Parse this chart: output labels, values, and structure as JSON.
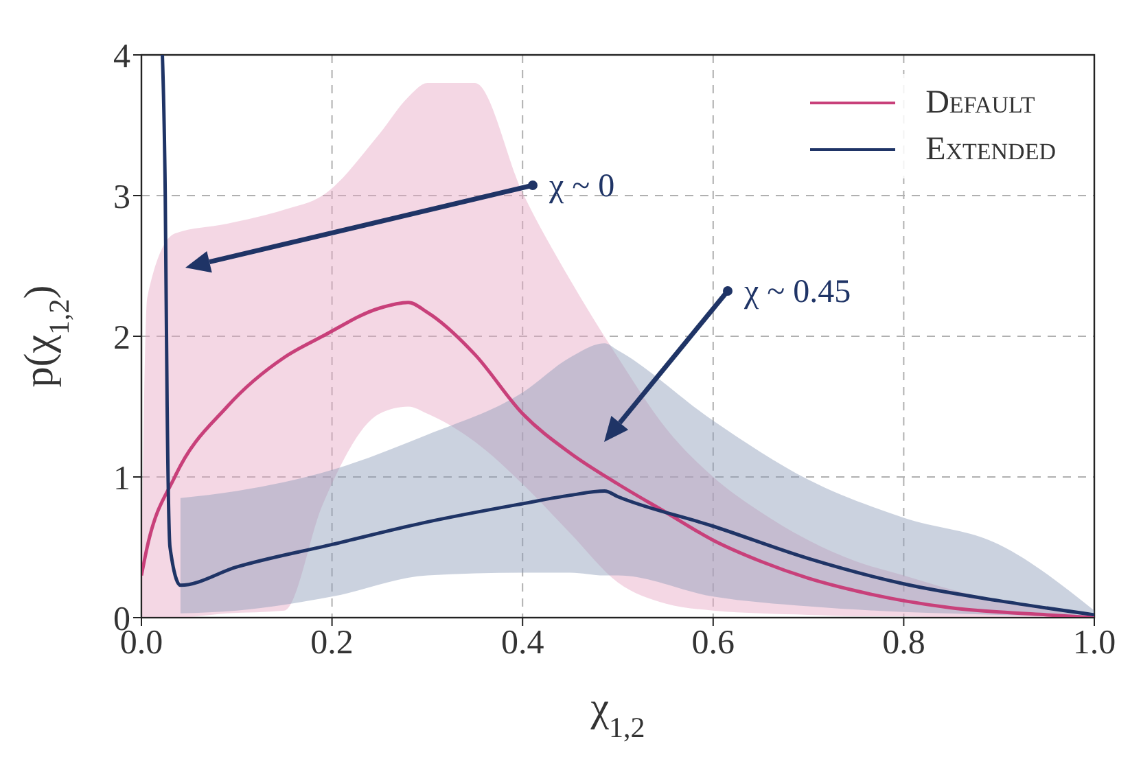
{
  "chart_data": {
    "type": "line",
    "xlabel": "χ$_{1,2}$",
    "ylabel": "p(χ$_{1,2}$)",
    "xlim": [
      0,
      1
    ],
    "ylim": [
      0,
      4
    ],
    "xticks": [
      {
        "value": 0,
        "label": "0.0"
      },
      {
        "value": 0.2,
        "label": "0.2"
      },
      {
        "value": 0.4,
        "label": "0.4"
      },
      {
        "value": 0.6,
        "label": "0.6"
      },
      {
        "value": 0.8,
        "label": "0.8"
      },
      {
        "value": 1,
        "label": "1.0"
      }
    ],
    "yticks": [
      0,
      1,
      2,
      3,
      4
    ],
    "grid": true,
    "legend": "top right",
    "marker": "none",
    "line_style": "solid",
    "series": [
      {
        "name": "Default",
        "color": "#c8407a",
        "x": [
          0,
          0.006,
          0.035,
          0.09,
          0.15,
          0.19,
          0.25,
          0.28,
          0.3,
          0.35,
          0.4,
          0.45,
          0.5,
          0.55,
          0.6,
          0.65,
          0.7,
          0.75,
          0.8,
          0.85,
          0.9,
          0.95,
          1.0
        ],
        "values": [
          0.3,
          0.5,
          1.0,
          1.5,
          1.85,
          2.0,
          2.2,
          2.24,
          2.17,
          1.87,
          1.45,
          1.17,
          0.95,
          0.75,
          0.55,
          0.4,
          0.28,
          0.19,
          0.12,
          0.07,
          0.04,
          0.02,
          0.0
        ],
        "lower": [
          0,
          0,
          0,
          0.03,
          0.05,
          0.8,
          1.45,
          1.5,
          1.45,
          1.25,
          0.95,
          0.6,
          0.25,
          0.1,
          0.05,
          0.03,
          0.02,
          0.01,
          0.01,
          0.0,
          0.0,
          0.0,
          0.0
        ],
        "upper": [
          0.3,
          2.27,
          2.73,
          2.8,
          2.9,
          3.0,
          3.44,
          3.7,
          3.8,
          3.8,
          3.02,
          2.4,
          1.85,
          1.35,
          1.0,
          0.75,
          0.55,
          0.4,
          0.3,
          0.2,
          0.12,
          0.06,
          0.0
        ]
      },
      {
        "name": "Extended",
        "color": "#1f3466",
        "x": [
          0.022,
          0.025,
          0.027,
          0.03,
          0.041,
          0.1,
          0.2,
          0.3,
          0.4,
          0.45,
          0.486,
          0.5,
          0.6,
          0.7,
          0.8,
          0.9,
          1.0
        ],
        "values": [
          4.0,
          3.0,
          1.5,
          0.5,
          0.23,
          0.36,
          0.52,
          0.68,
          0.81,
          0.87,
          0.9,
          0.86,
          0.65,
          0.42,
          0.24,
          0.12,
          0.02
        ],
        "lower": [
          null,
          null,
          null,
          null,
          0.03,
          0.05,
          0.15,
          0.3,
          0.32,
          0.32,
          0.3,
          0.3,
          0.15,
          0.08,
          0.04,
          0.02,
          0.0
        ],
        "upper": [
          null,
          null,
          null,
          null,
          0.85,
          0.9,
          1.05,
          1.3,
          1.6,
          1.85,
          1.95,
          1.9,
          1.4,
          0.98,
          0.71,
          0.52,
          0.05
        ]
      }
    ],
    "annotations": [
      "χ ~ 0",
      "χ ~ 0.45"
    ]
  }
}
